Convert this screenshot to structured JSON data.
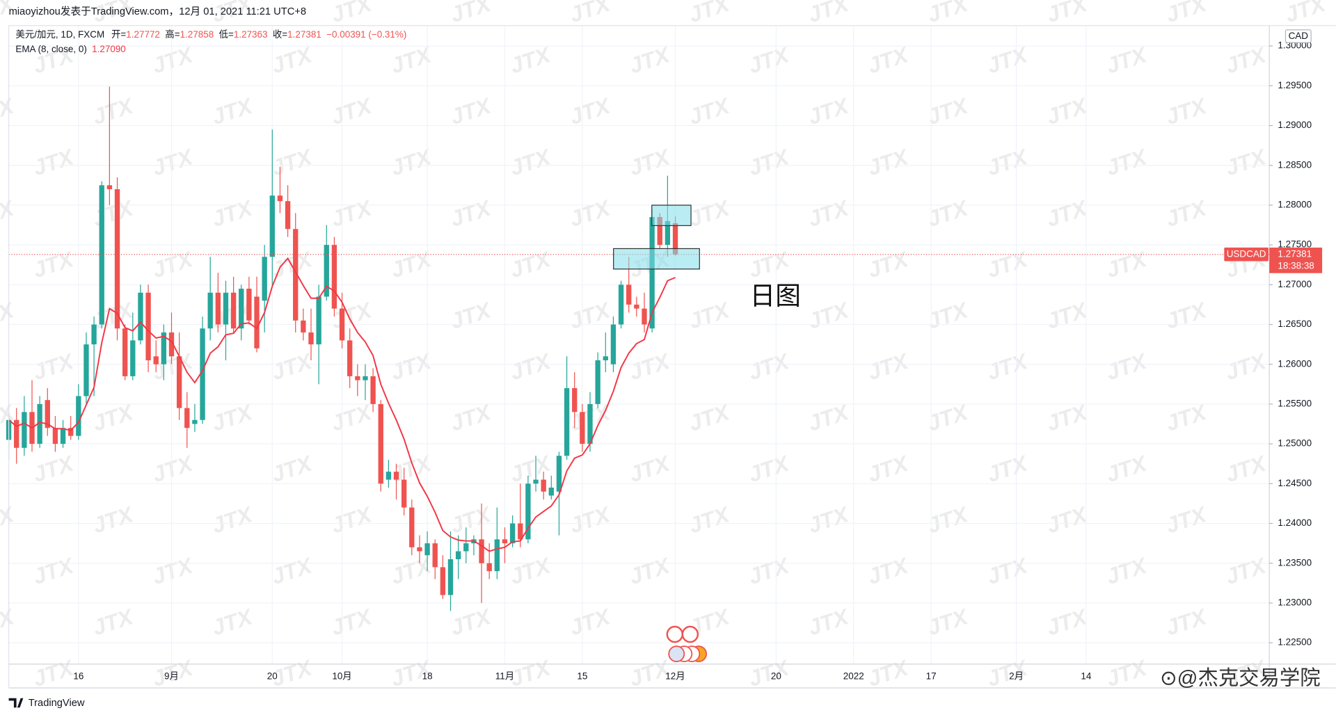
{
  "header": "miaoyizhou发表于TradingView.com，12月 01, 2021 11:21 UTC+8",
  "chart_data": {
    "type": "candlestick",
    "symbol": "美元/加元, 1D, FXCM",
    "ohlc_labels": [
      "开=",
      "高=",
      "低=",
      "收="
    ],
    "change": "−0.00391 (−0.31%)",
    "ticker": "USDCAD",
    "countdown": "18:38:38",
    "currency": "CAD",
    "annotation": "日图",
    "watermark": "JTX",
    "up_color": "#26a69a",
    "down_color": "#ef5350",
    "ema_name": "EMA (8, close, 0)",
    "ema_label": "1.27090",
    "ema_color": "#f23645",
    "grid": true,
    "ylim": [
      1.22232,
      1.30257
    ],
    "yticks": [
      {
        "value": 1.225,
        "label": "1.22500"
      },
      {
        "value": 1.23,
        "label": "1.23000"
      },
      {
        "value": 1.235,
        "label": "1.23500"
      },
      {
        "value": 1.24,
        "label": "1.24000"
      },
      {
        "value": 1.245,
        "label": "1.24500"
      },
      {
        "value": 1.25,
        "label": "1.25000"
      },
      {
        "value": 1.255,
        "label": "1.25500"
      },
      {
        "value": 1.26,
        "label": "1.26000"
      },
      {
        "value": 1.265,
        "label": "1.26500"
      },
      {
        "value": 1.27,
        "label": "1.27000"
      },
      {
        "value": 1.275,
        "label": "1.27500"
      },
      {
        "value": 1.28,
        "label": "1.28000"
      },
      {
        "value": 1.285,
        "label": "1.28500"
      },
      {
        "value": 1.29,
        "label": "1.29000"
      },
      {
        "value": 1.295,
        "label": "1.29500"
      },
      {
        "value": 1.3,
        "label": "1.30000"
      }
    ],
    "categories": [
      null,
      null,
      null,
      null,
      null,
      null,
      null,
      null,
      null,
      "16",
      null,
      null,
      null,
      null,
      null,
      null,
      null,
      null,
      null,
      null,
      null,
      "9月",
      null,
      null,
      null,
      null,
      null,
      null,
      null,
      null,
      null,
      null,
      null,
      null,
      "20",
      null,
      null,
      null,
      null,
      null,
      null,
      null,
      null,
      "10月",
      null,
      null,
      null,
      null,
      null,
      null,
      null,
      null,
      null,
      null,
      "18",
      null,
      null,
      null,
      null,
      null,
      null,
      null,
      null,
      null,
      "11月",
      null,
      null,
      null,
      null,
      null,
      null,
      null,
      null,
      null,
      "15",
      null,
      null,
      null,
      null,
      null,
      null,
      null,
      null,
      null,
      null,
      null,
      "12月",
      null,
      null,
      null,
      null,
      null,
      null,
      null,
      null,
      null,
      null,
      null,
      null,
      "20",
      null,
      null,
      null,
      null,
      null,
      null,
      null,
      null,
      null,
      "2022",
      null,
      null,
      null,
      null,
      null,
      null,
      null,
      null,
      null,
      "17",
      null,
      null,
      null,
      null,
      null,
      null,
      null,
      null,
      null,
      null,
      "2月",
      null,
      null,
      null,
      null,
      null,
      null,
      null,
      null,
      "14"
    ],
    "open": [
      1.2505,
      1.253,
      1.2495,
      1.254,
      1.25,
      1.2555,
      1.252,
      1.25,
      1.252,
      1.251,
      1.256,
      1.2625,
      1.265,
      1.2825,
      1.282,
      1.2645,
      1.2585,
      1.263,
      1.269,
      1.261,
      1.26,
      1.264,
      1.261,
      1.2545,
      1.2525,
      1.253,
      1.2645,
      1.269,
      1.265,
      1.269,
      1.2645,
      1.2695,
      1.2685,
      1.268,
      1.2735,
      1.2812,
      1.2805,
      1.277,
      1.2655,
      1.264,
      1.2625,
      1.2685,
      1.275,
      1.267,
      1.263,
      1.2585,
      1.258,
      1.2585,
      1.255,
      1.2455,
      1.2465,
      1.2455,
      1.242,
      1.237,
      1.236,
      1.2375,
      1.2345,
      1.231,
      1.2355,
      1.2365,
      1.2375,
      1.238,
      1.235,
      1.234,
      1.238,
      1.2375,
      1.24,
      1.238,
      1.245,
      1.2455,
      1.2435,
      1.244,
      1.2485,
      1.257,
      1.254,
      1.25,
      1.255,
      1.2605,
      1.26,
      1.265,
      1.27,
      1.2675,
      1.267,
      1.2645,
      1.2785,
      1.275,
      1.27772,
      null,
      null,
      null,
      null,
      null,
      null,
      null,
      null,
      null,
      null,
      null,
      null,
      null,
      null,
      null,
      null,
      null,
      null,
      null,
      null,
      null,
      null,
      null,
      null,
      null,
      null,
      null,
      null,
      null,
      null,
      null,
      null,
      null,
      null,
      null,
      null,
      null,
      null,
      null,
      null,
      null,
      null,
      null,
      null,
      null,
      null,
      null,
      null,
      null,
      null,
      null,
      null,
      null
    ],
    "high": [
      1.254,
      1.2545,
      1.256,
      1.258,
      1.256,
      1.257,
      1.2535,
      1.253,
      1.2535,
      1.2575,
      1.264,
      1.266,
      1.283,
      1.2949,
      1.2835,
      1.265,
      1.2665,
      1.27,
      1.27,
      1.263,
      1.265,
      1.2665,
      1.264,
      1.2565,
      1.255,
      1.266,
      1.2735,
      1.2715,
      1.2705,
      1.271,
      1.27,
      1.271,
      1.271,
      1.275,
      1.2895,
      1.2848,
      1.2825,
      1.279,
      1.267,
      1.267,
      1.27,
      1.2775,
      1.276,
      1.269,
      1.2645,
      1.26,
      1.26,
      1.2595,
      1.2555,
      1.248,
      1.2475,
      1.247,
      1.243,
      1.2385,
      1.239,
      1.238,
      1.236,
      1.239,
      1.2385,
      1.2395,
      1.2385,
      1.2425,
      1.2375,
      1.242,
      1.2395,
      1.241,
      1.245,
      1.246,
      1.2485,
      1.2465,
      1.246,
      1.249,
      1.261,
      1.259,
      1.255,
      1.2565,
      1.2615,
      1.264,
      1.266,
      1.2705,
      1.2735,
      1.2685,
      1.269,
      1.2795,
      1.279,
      1.2837,
      1.27858,
      null,
      null,
      null,
      null,
      null,
      null,
      null,
      null,
      null,
      null,
      null,
      null,
      null,
      null,
      null,
      null,
      null,
      null,
      null,
      null,
      null,
      null,
      null,
      null,
      null,
      null,
      null,
      null,
      null,
      null,
      null,
      null,
      null,
      null,
      null,
      null,
      null,
      null,
      null,
      null,
      null,
      null,
      null,
      null,
      null,
      null,
      null,
      null,
      null,
      null,
      null,
      null,
      null
    ],
    "low": [
      1.248,
      1.2475,
      1.2485,
      1.249,
      1.2495,
      1.251,
      1.249,
      1.2495,
      1.2505,
      1.2505,
      1.255,
      1.256,
      1.2645,
      1.28,
      1.263,
      1.258,
      1.258,
      1.2625,
      1.259,
      1.259,
      1.258,
      1.26,
      1.253,
      1.2495,
      1.2515,
      1.2525,
      1.263,
      1.264,
      1.2605,
      1.264,
      1.263,
      1.265,
      1.2615,
      1.264,
      1.27,
      1.279,
      1.276,
      1.264,
      1.263,
      1.2605,
      1.2575,
      1.268,
      1.266,
      1.262,
      1.257,
      1.256,
      1.2555,
      1.254,
      1.244,
      1.2445,
      1.243,
      1.241,
      1.236,
      1.235,
      1.234,
      1.233,
      1.2305,
      1.229,
      1.233,
      1.235,
      1.236,
      1.23,
      1.233,
      1.233,
      1.235,
      1.237,
      1.237,
      1.2375,
      1.244,
      1.243,
      1.243,
      1.2385,
      1.248,
      1.252,
      1.249,
      1.249,
      1.2545,
      1.259,
      1.259,
      1.2645,
      1.2665,
      1.266,
      1.264,
      1.264,
      1.2745,
      1.2735,
      1.27363,
      null,
      null,
      null,
      null,
      null,
      null,
      null,
      null,
      null,
      null,
      null,
      null,
      null,
      null,
      null,
      null,
      null,
      null,
      null,
      null,
      null,
      null,
      null,
      null,
      null,
      null,
      null,
      null,
      null,
      null,
      null,
      null,
      null,
      null,
      null,
      null,
      null,
      null,
      null,
      null,
      null,
      null,
      null,
      null,
      null,
      null,
      null,
      null,
      null,
      null,
      null,
      null,
      null
    ],
    "close": [
      1.253,
      1.2495,
      1.254,
      1.25,
      1.255,
      1.252,
      1.25,
      1.252,
      1.251,
      1.256,
      1.2625,
      1.265,
      1.2825,
      1.282,
      1.2645,
      1.2585,
      1.263,
      1.269,
      1.2605,
      1.26,
      1.264,
      1.261,
      1.2545,
      1.252,
      1.253,
      1.2645,
      1.269,
      1.265,
      1.269,
      1.2645,
      1.2695,
      1.2655,
      1.262,
      1.2735,
      1.2812,
      1.2805,
      1.277,
      1.2655,
      1.264,
      1.2625,
      1.2685,
      1.275,
      1.267,
      1.263,
      1.2585,
      1.258,
      1.2585,
      1.255,
      1.245,
      1.2465,
      1.2455,
      1.242,
      1.237,
      1.2365,
      1.2375,
      1.2345,
      1.231,
      1.2355,
      1.2365,
      1.2375,
      1.238,
      1.235,
      1.234,
      1.238,
      1.2375,
      1.24,
      1.238,
      1.245,
      1.2455,
      1.244,
      1.2445,
      1.2485,
      1.257,
      1.254,
      1.25,
      1.255,
      1.2605,
      1.261,
      1.265,
      1.27,
      1.2675,
      1.267,
      1.265,
      1.2785,
      1.275,
      1.278,
      1.27381,
      null,
      null,
      null,
      null,
      null,
      null,
      null,
      null,
      null,
      null,
      null,
      null,
      null,
      null,
      null,
      null,
      null,
      null,
      null,
      null,
      null,
      null,
      null,
      null,
      null,
      null,
      null,
      null,
      null,
      null,
      null,
      null,
      null,
      null,
      null,
      null,
      null,
      null,
      null,
      null,
      null,
      null,
      null,
      null,
      null,
      null,
      null,
      null,
      null,
      null,
      null,
      null,
      null
    ],
    "ema": [
      1.253,
      1.2522,
      1.2526,
      1.252,
      1.2527,
      1.2525,
      1.2519,
      1.2519,
      1.2517,
      1.2527,
      1.2549,
      1.2571,
      1.2627,
      1.267,
      1.2664,
      1.2646,
      1.2642,
      1.2653,
      1.2642,
      1.2633,
      1.2635,
      1.2629,
      1.261,
      1.259,
      1.2577,
      1.2592,
      1.2614,
      1.2622,
      1.2637,
      1.2639,
      1.2651,
      1.2652,
      1.2645,
      1.2665,
      1.2698,
      1.2722,
      1.2733,
      1.2716,
      1.2699,
      1.2683,
      1.2683,
      1.2698,
      1.2692,
      1.2678,
      1.2657,
      1.264,
      1.2628,
      1.2611,
      1.2575,
      1.2551,
      1.253,
      1.2506,
      1.2476,
      1.2451,
      1.2434,
      1.2414,
      1.2391,
      1.2383,
      1.2379,
      1.2378,
      1.2378,
      1.2372,
      1.2365,
      1.2368,
      1.237,
      1.2377,
      1.2378,
      1.2394,
      1.2408,
      1.2415,
      1.2422,
      1.2436,
      1.2466,
      1.2482,
      1.2486,
      1.25,
      1.2523,
      1.2542,
      1.2566,
      1.2596,
      1.2614,
      1.2626,
      1.2631,
      1.2665,
      1.2684,
      1.2705,
      1.2709,
      null,
      null,
      null,
      null,
      null,
      null,
      null,
      null,
      null,
      null,
      null,
      null,
      null,
      null,
      null,
      null,
      null,
      null,
      null,
      null,
      null,
      null,
      null,
      null,
      null,
      null,
      null,
      null,
      null,
      null,
      null,
      null,
      null,
      null,
      null,
      null,
      null,
      null,
      null,
      null,
      null,
      null,
      null,
      null,
      null,
      null,
      null,
      null,
      null,
      null,
      null,
      null,
      null
    ]
  },
  "footer": {
    "logo": "TradingView",
    "source_watermark": "⊙@杰克交易学院"
  }
}
